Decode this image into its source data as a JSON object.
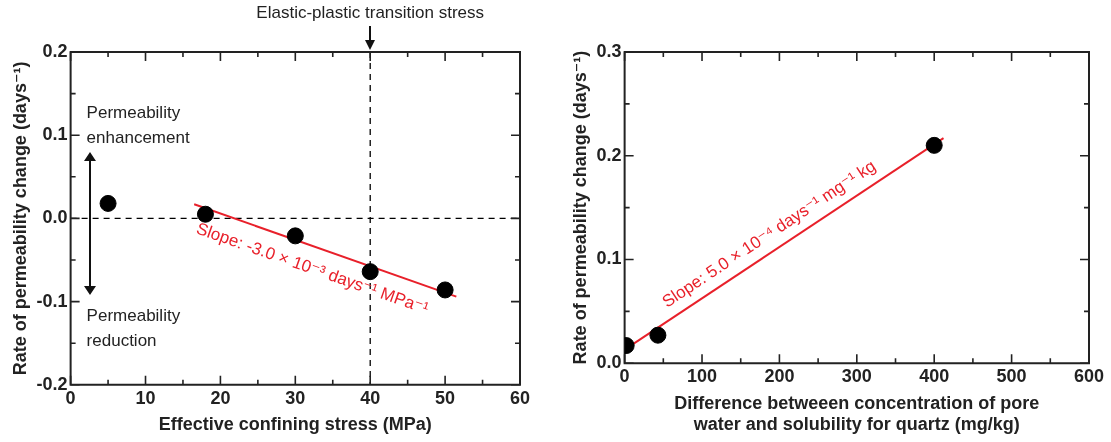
{
  "chart_data": [
    {
      "type": "scatter",
      "xlabel": "Effective confining stress (MPa)",
      "ylabel": "Rate of permeability change (days⁻¹)",
      "xlim": [
        0,
        60
      ],
      "xticks": [
        0,
        {
          "value": 5,
          "label": null
        },
        10,
        {
          "value": 15,
          "label": null
        },
        20,
        {
          "value": 25,
          "label": null
        },
        30,
        {
          "value": 35,
          "label": null
        },
        40,
        {
          "value": 45,
          "label": null
        },
        50,
        {
          "value": 55,
          "label": null
        },
        60
      ],
      "ylim": [
        -0.2,
        0.2
      ],
      "yticks": [
        {
          "value": -0.2,
          "label": "-0.2"
        },
        {
          "value": -0.15,
          "label": null
        },
        {
          "value": -0.1,
          "label": "-0.1"
        },
        {
          "value": -0.05,
          "label": null
        },
        {
          "value": 0,
          "label": "0.0"
        },
        {
          "value": 0.05,
          "label": null
        },
        {
          "value": 0.1,
          "label": "0.1"
        },
        {
          "value": 0.15,
          "label": null
        },
        {
          "value": 0.2,
          "label": "0.2"
        }
      ],
      "legend": false,
      "grid": false,
      "series": [
        {
          "type": "scatter",
          "color": "#000000",
          "marker": "circle",
          "x": [
            5,
            18,
            30,
            40,
            50
          ],
          "values": [
            0.018,
            0.005,
            -0.021,
            -0.064,
            -0.086
          ]
        },
        {
          "type": "line",
          "color": "#e8202a",
          "marker": "none",
          "x": [
            16.5,
            51.5
          ],
          "values": [
            0.017,
            -0.094
          ]
        }
      ],
      "ref_lines": [
        {
          "axis": "y",
          "value": 0,
          "line_style": "dashed",
          "color": "#000000"
        },
        {
          "axis": "x",
          "value": 40,
          "label": "Elastic-plastic transition stress",
          "line_style": "dashed",
          "color": "#000000"
        }
      ],
      "annotations": [
        "Permeability enhancement",
        "Permeability reduction",
        "Slope: -3.0 × 10⁻³ days⁻¹ MPa⁻¹"
      ]
    },
    {
      "type": "scatter",
      "xlabel": "Difference betweeen concentration of pore water and solubility for quartz (mg/kg)",
      "ylabel": "Rate of permeability change (days⁻¹)",
      "xlim": [
        0,
        600
      ],
      "xticks": [
        0,
        {
          "value": 50,
          "label": null
        },
        100,
        {
          "value": 150,
          "label": null
        },
        200,
        {
          "value": 250,
          "label": null
        },
        300,
        {
          "value": 350,
          "label": null
        },
        400,
        {
          "value": 450,
          "label": null
        },
        500,
        {
          "value": 550,
          "label": null
        },
        600
      ],
      "ylim": [
        0,
        0.3
      ],
      "yticks": [
        {
          "value": 0,
          "label": "0.0"
        },
        {
          "value": 0.05,
          "label": null
        },
        {
          "value": 0.1,
          "label": "0.1"
        },
        {
          "value": 0.15,
          "label": null
        },
        {
          "value": 0.2,
          "label": "0.2"
        },
        {
          "value": 0.25,
          "label": null
        },
        {
          "value": 0.3,
          "label": "0.3"
        }
      ],
      "legend": false,
      "grid": false,
      "series": [
        {
          "type": "scatter",
          "color": "#000000",
          "marker": "circle",
          "x": [
            2,
            43,
            400
          ],
          "values": [
            0.017,
            0.027,
            0.21
          ]
        },
        {
          "type": "line",
          "color": "#e8202a",
          "marker": "none",
          "x": [
            2,
            412
          ],
          "values": [
            0.014,
            0.217
          ]
        }
      ],
      "annotations": [
        "Slope: 5.0 × 10⁻⁴ days⁻¹ mg⁻¹ kg"
      ]
    }
  ]
}
